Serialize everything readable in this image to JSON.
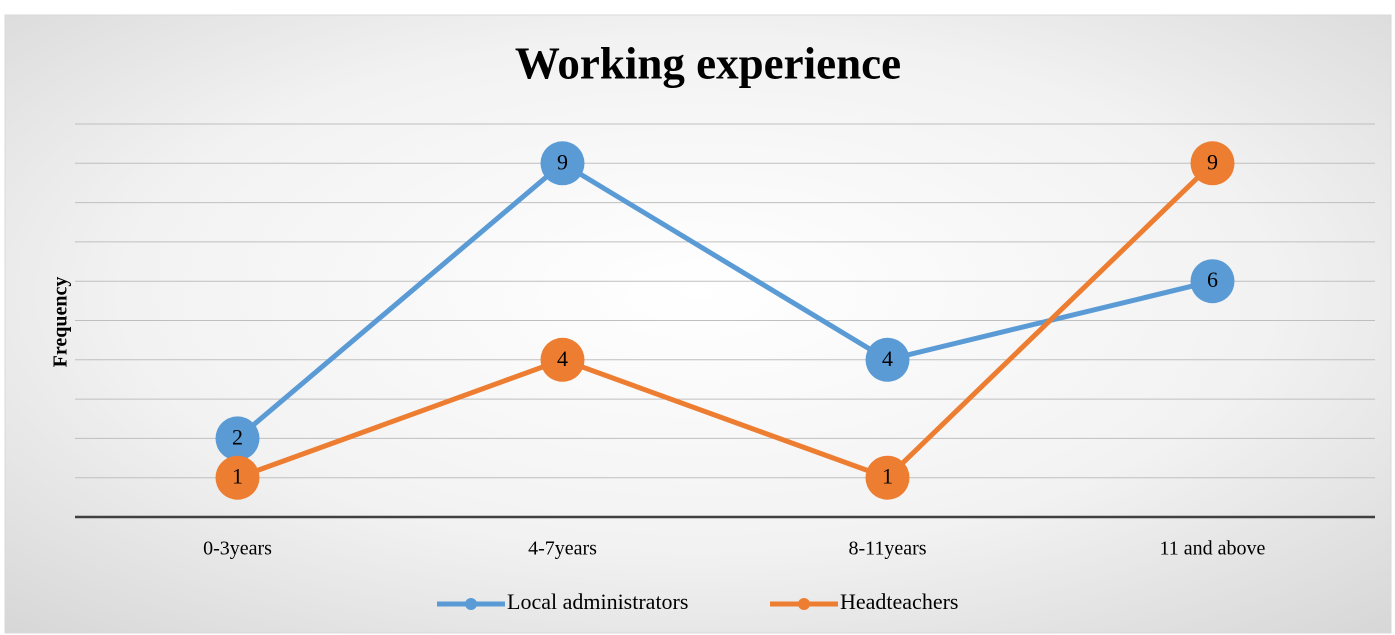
{
  "chart_data": {
    "type": "line",
    "title": "Working experience",
    "y_label": "Frequency",
    "categories": [
      "0-3years",
      "4-7years",
      "8-11years",
      "11 and above"
    ],
    "series": [
      {
        "name": "Local administrators",
        "color": "#5b9bd5",
        "values": [
          2,
          9,
          4,
          6
        ]
      },
      {
        "name": "Headteachers",
        "color": "#ed7d31",
        "values": [
          1,
          4,
          1,
          9
        ]
      }
    ],
    "ylim": [
      0,
      10
    ],
    "yticks": [
      0,
      1,
      2,
      3,
      4,
      5,
      6,
      7,
      8,
      9,
      10
    ],
    "grid": true,
    "legend": "bottom"
  }
}
